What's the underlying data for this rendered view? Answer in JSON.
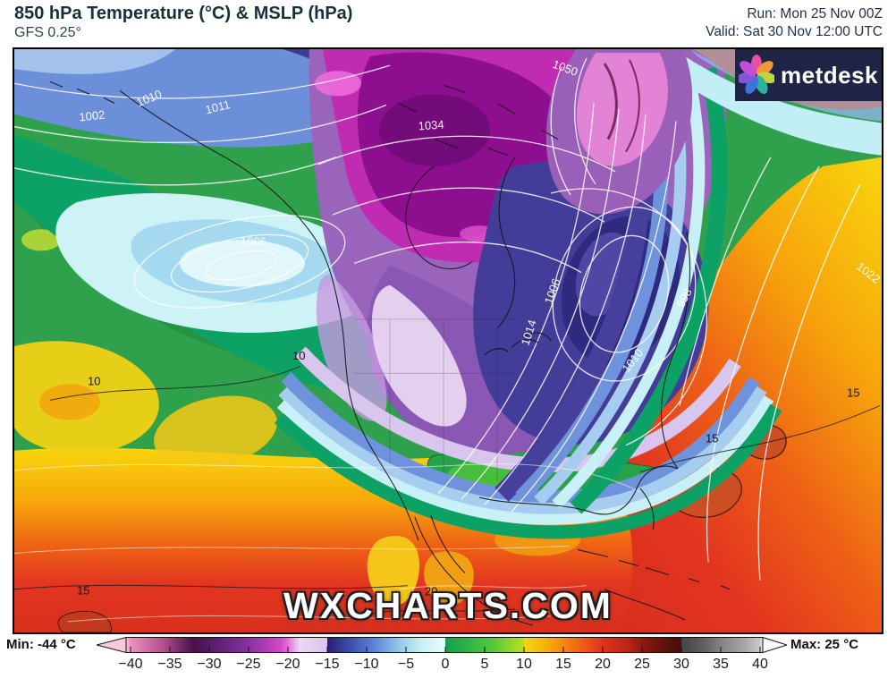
{
  "header": {
    "title": "850 hPa Temperature (°C) & MSLP (hPa)",
    "model": "GFS 0.25°",
    "run_label": "Run: Mon 25 Nov 00Z",
    "valid_label": "Valid: Sat 30 Nov 12:00 UTC"
  },
  "logo": {
    "text": "metdesk",
    "icon": "metdesk-star-icon",
    "background": "#1e2446",
    "petal_colors": [
      "#e84f9e",
      "#f0993a",
      "#c3d343",
      "#2fb3a0",
      "#3e74d8",
      "#8156d8",
      "#c44ed6"
    ]
  },
  "watermark": "WXCHARTS.COM",
  "map": {
    "isobar_labels": [
      "1002",
      "1010",
      "1011",
      "1034",
      "1050",
      "1006",
      "1014",
      "998",
      "1010",
      "1022",
      "1006"
    ],
    "temperature_labels": [
      "10",
      "10",
      "15",
      "15",
      "15",
      "20"
    ]
  },
  "colorbar": {
    "min_label": "Min: -44 °C",
    "max_label": "Max: 25 °C",
    "unit": "°C",
    "ticks": [
      "−40",
      "−35",
      "−30",
      "−25",
      "−20",
      "−15",
      "−10",
      "−5",
      "0",
      "5",
      "10",
      "15",
      "20",
      "25",
      "30",
      "35",
      "40"
    ],
    "stops": [
      {
        "v": -44,
        "c": "#f6cbdc"
      },
      {
        "v": -40,
        "c": "#ee8fc1"
      },
      {
        "v": -36,
        "c": "#b5518f"
      },
      {
        "v": -32,
        "c": "#471148"
      },
      {
        "v": -28,
        "c": "#64257f"
      },
      {
        "v": -24,
        "c": "#9a35ae"
      },
      {
        "v": -21,
        "c": "#cf48c4"
      },
      {
        "v": -20,
        "c": "#e76cd8"
      },
      {
        "v": -18.5,
        "c": "#eed7f2"
      },
      {
        "v": -15,
        "c": "#d9c4ee"
      },
      {
        "v": -15,
        "c": "#2b1e70"
      },
      {
        "v": -12,
        "c": "#3c50ae"
      },
      {
        "v": -9,
        "c": "#5b84d8"
      },
      {
        "v": -6,
        "c": "#8fc6ea"
      },
      {
        "v": -3,
        "c": "#c8f0f4"
      },
      {
        "v": 0,
        "c": "#eafcfc"
      },
      {
        "v": 0,
        "c": "#13a04f"
      },
      {
        "v": 3,
        "c": "#2eb545"
      },
      {
        "v": 6,
        "c": "#57c838"
      },
      {
        "v": 10,
        "c": "#b8e020"
      },
      {
        "v": 10,
        "c": "#f6d70a"
      },
      {
        "v": 13,
        "c": "#f6ad0b"
      },
      {
        "v": 15,
        "c": "#f4880e"
      },
      {
        "v": 18,
        "c": "#ec5417"
      },
      {
        "v": 20,
        "c": "#e0321d"
      },
      {
        "v": 23,
        "c": "#c02715"
      },
      {
        "v": 25,
        "c": "#8f1a0e"
      },
      {
        "v": 28,
        "c": "#5a120c"
      },
      {
        "v": 30,
        "c": "#4a0e09"
      },
      {
        "v": 30,
        "c": "#454545"
      },
      {
        "v": 33,
        "c": "#616161"
      },
      {
        "v": 35,
        "c": "#838383"
      },
      {
        "v": 38,
        "c": "#a6a6a6"
      },
      {
        "v": 40,
        "c": "#c9c9c9"
      },
      {
        "v": 44,
        "c": "#f4f4f4"
      }
    ]
  }
}
